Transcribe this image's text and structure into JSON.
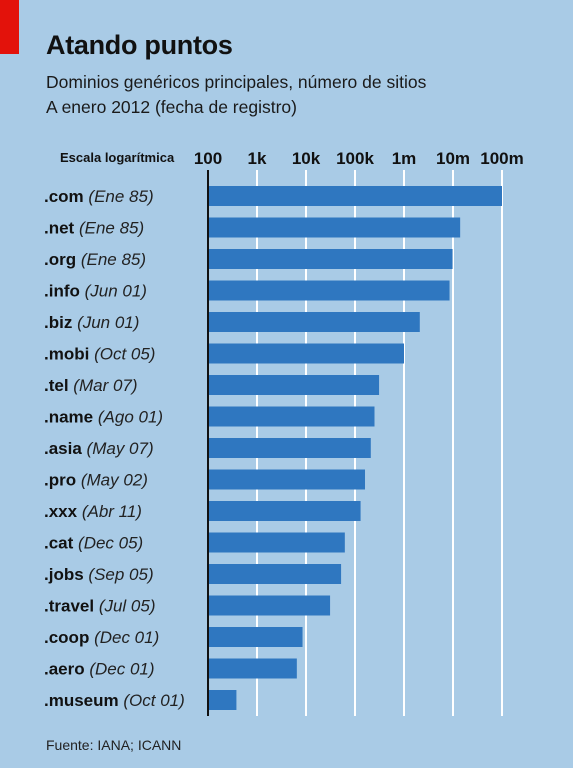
{
  "title": "Atando puntos",
  "subtitle_line1": "Dominios genéricos principales, número de sitios",
  "subtitle_line2": "A enero 2012 (fecha de registro)",
  "scale_label": "Escala logarítmica",
  "source": "Fuente: IANA; ICANN",
  "colors": {
    "bar": "#2f77c0",
    "background": "#a9cbe6",
    "accent": "#e3120b",
    "gridline": "#ffffff"
  },
  "chart_data": {
    "type": "bar",
    "orientation": "horizontal",
    "x_scale": "log",
    "xlim": [
      100,
      150000000
    ],
    "ticks": [
      {
        "value": 100,
        "label": "100"
      },
      {
        "value": 1000,
        "label": "1k"
      },
      {
        "value": 10000,
        "label": "10k"
      },
      {
        "value": 100000,
        "label": "100k"
      },
      {
        "value": 1000000,
        "label": "1m"
      },
      {
        "value": 10000000,
        "label": "10m"
      },
      {
        "value": 100000000,
        "label": "100m"
      }
    ],
    "grid": true,
    "categories": [
      {
        "domain": ".com",
        "date": "(Ene 85)",
        "value": 100000000
      },
      {
        "domain": ".net",
        "date": "(Ene 85)",
        "value": 14000000
      },
      {
        "domain": ".org",
        "date": "(Ene 85)",
        "value": 9800000
      },
      {
        "domain": ".info",
        "date": "(Jun 01)",
        "value": 8500000
      },
      {
        "domain": ".biz",
        "date": "(Jun 01)",
        "value": 2100000
      },
      {
        "domain": ".mobi",
        "date": "(Oct 05)",
        "value": 1000000
      },
      {
        "domain": ".tel",
        "date": "(Mar 07)",
        "value": 310000
      },
      {
        "domain": ".name",
        "date": "(Ago 01)",
        "value": 250000
      },
      {
        "domain": ".asia",
        "date": "(May 07)",
        "value": 210000
      },
      {
        "domain": ".pro",
        "date": "(May 02)",
        "value": 160000
      },
      {
        "domain": ".xxx",
        "date": "(Abr 11)",
        "value": 130000
      },
      {
        "domain": ".cat",
        "date": "(Dec 05)",
        "value": 62000
      },
      {
        "domain": ".jobs",
        "date": "(Sep 05)",
        "value": 52000
      },
      {
        "domain": ".travel",
        "date": "(Jul 05)",
        "value": 31000
      },
      {
        "domain": ".coop",
        "date": "(Dec 01)",
        "value": 8500
      },
      {
        "domain": ".aero",
        "date": "(Dec 01)",
        "value": 6500
      },
      {
        "domain": ".museum",
        "date": "(Oct 01)",
        "value": 380
      }
    ]
  }
}
